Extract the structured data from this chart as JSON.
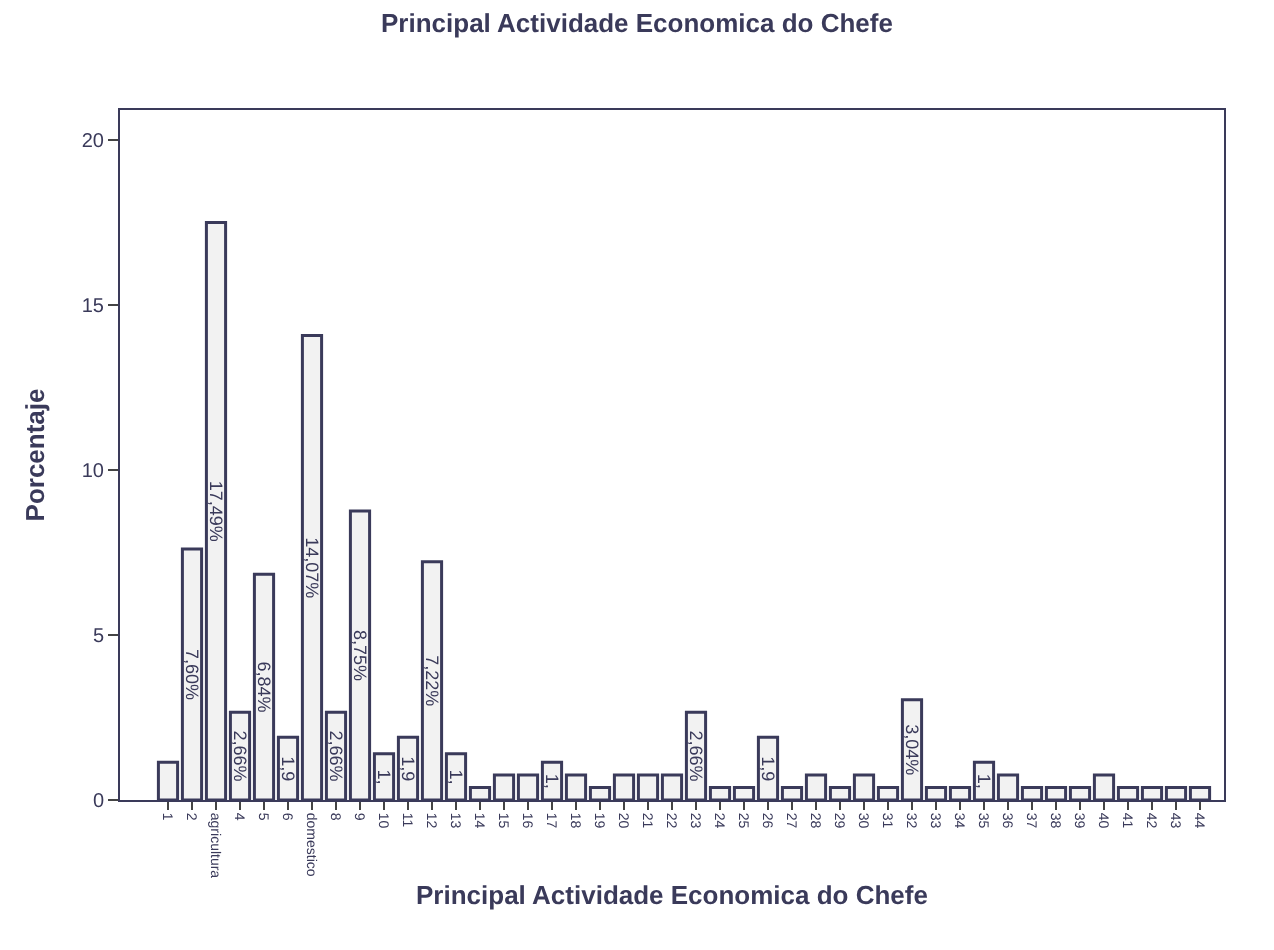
{
  "chart_data": {
    "type": "bar",
    "title": "Principal Actividade Economica do Chefe",
    "xlabel": "Principal Actividade Economica do Chefe",
    "ylabel": "Porcentaje",
    "categories": [
      "1",
      "2",
      "agricultura",
      "4",
      "5",
      "6",
      "domestico",
      "8",
      "9",
      "10",
      "11",
      "12",
      "13",
      "14",
      "15",
      "16",
      "17",
      "18",
      "19",
      "20",
      "21",
      "22",
      "23",
      "24",
      "25",
      "26",
      "27",
      "28",
      "29",
      "30",
      "31",
      "32",
      "33",
      "34",
      "35",
      "36",
      "37",
      "38",
      "39",
      "40",
      "41",
      "42",
      "43",
      "44"
    ],
    "values": [
      1.14,
      7.6,
      17.49,
      2.66,
      6.84,
      1.9,
      14.07,
      2.66,
      8.75,
      1.4,
      1.9,
      7.22,
      1.4,
      0.38,
      0.76,
      0.76,
      1.14,
      0.76,
      0.38,
      0.76,
      0.76,
      0.76,
      2.66,
      0.38,
      0.38,
      1.9,
      0.38,
      0.76,
      0.38,
      0.76,
      0.38,
      3.04,
      0.38,
      0.38,
      1.14,
      0.76,
      0.38,
      0.38,
      0.38,
      0.76,
      0.38,
      0.38,
      0.38,
      0.38
    ],
    "value_labels": [
      null,
      "7,60%",
      "17,49%",
      "2,66%",
      "6,84%",
      "1,9",
      "14,07%",
      "2,66%",
      "8,75%",
      "1,",
      "1,9",
      "7,22%",
      "1,",
      null,
      null,
      null,
      "1,",
      null,
      null,
      null,
      null,
      null,
      "2,66%",
      null,
      null,
      "1,9",
      null,
      null,
      null,
      null,
      null,
      "3,04%",
      null,
      null,
      "1,",
      null,
      null,
      null,
      null,
      null,
      null,
      null,
      null,
      null
    ],
    "color": "#f2f2f2",
    "ylim": [
      0,
      20.9
    ],
    "yticks": [
      0,
      5,
      10,
      15,
      20
    ]
  }
}
